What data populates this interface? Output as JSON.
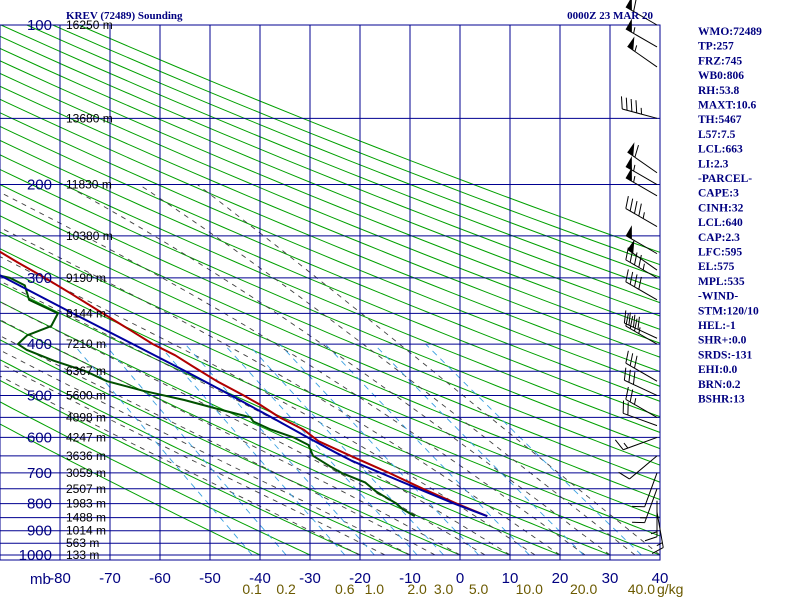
{
  "header": {
    "station": "KREV (72489) Sounding",
    "time": "0000Z 23 MAR 20"
  },
  "colors": {
    "grid": "#000090",
    "dry_adiabat": "#00a000",
    "moist_adiabat": "#404040",
    "mixing_ratio": "#3aa0e0",
    "temperature": "#b00000",
    "dewpoint": "#005000",
    "parcel": "#0000a0",
    "wind": "#000000"
  },
  "indices": [
    "WMO:72489",
    "TP:257",
    "FRZ:745",
    "WB0:806",
    "RH:53.8",
    "MAXT:10.6",
    "TH:5467",
    "L57:7.5",
    "LCL:663",
    "LI:2.3",
    "-PARCEL-",
    "CAPE:3",
    "CINH:32",
    "LCL:640",
    "CAP:2.3",
    "LFC:595",
    "EL:575",
    "MPL:535",
    "-WIND-",
    "STM:120/10",
    "HEL:-1",
    "SHR+:0.0",
    "SRDS:-131",
    "EHI:0.0",
    "BRN:0.2",
    "BSHR:13"
  ],
  "chart_data": {
    "type": "line",
    "xlabel": "",
    "ylabel": "",
    "x_unit_label": "mb",
    "mixing_ratio_unit": "g/kg",
    "xlim": [
      -80,
      10
    ],
    "ylim": [
      1000,
      100
    ],
    "temp_ticks": [
      -80,
      -70,
      -60,
      -50,
      -40,
      -30,
      -20,
      -10,
      0,
      10,
      20,
      30,
      40
    ],
    "temp_tick_labels": [
      "-80",
      "-70",
      "-60",
      "-50",
      "-40",
      "-30",
      "-20",
      "-10",
      "0",
      "10",
      "20",
      "30",
      "40"
    ],
    "pressure_ticks": [
      100,
      200,
      300,
      400,
      500,
      600,
      700,
      800,
      900,
      1000
    ],
    "height_labels": [
      {
        "p": 100,
        "label": "16250 m"
      },
      {
        "p": 150,
        "label": "13680 m"
      },
      {
        "p": 200,
        "label": "11830 m"
      },
      {
        "p": 250,
        "label": "10380 m"
      },
      {
        "p": 300,
        "label": "9190 m"
      },
      {
        "p": 350,
        "label": "8144 m"
      },
      {
        "p": 400,
        "label": "7210 m"
      },
      {
        "p": 450,
        "label": "6367 m"
      },
      {
        "p": 500,
        "label": "5600 m"
      },
      {
        "p": 550,
        "label": "4898 m"
      },
      {
        "p": 600,
        "label": "4247 m"
      },
      {
        "p": 650,
        "label": "3636 m"
      },
      {
        "p": 700,
        "label": "3059 m"
      },
      {
        "p": 750,
        "label": "2507 m"
      },
      {
        "p": 800,
        "label": "1983 m"
      },
      {
        "p": 850,
        "label": "1488 m"
      },
      {
        "p": 900,
        "label": "1014 m"
      },
      {
        "p": 950,
        "label": "563 m"
      },
      {
        "p": 1000,
        "label": "133 m"
      }
    ],
    "mixing_ratio_labels": [
      "0.1",
      "0.2",
      "0.6",
      "1.0",
      "2.0",
      "3.0",
      "5.0",
      "10.0",
      "20.0",
      "40.0"
    ],
    "series": [
      {
        "key": "temperature",
        "points": [
          [
            845,
            10.5
          ],
          [
            800,
            6
          ],
          [
            750,
            1.2
          ],
          [
            700,
            -3.5
          ],
          [
            650,
            -9
          ],
          [
            610,
            -13.5
          ],
          [
            580,
            -15
          ],
          [
            550,
            -18.2
          ],
          [
            520,
            -20.5
          ],
          [
            500,
            -22.5
          ],
          [
            470,
            -26
          ],
          [
            440,
            -29
          ],
          [
            420,
            -31
          ],
          [
            400,
            -34
          ],
          [
            370,
            -37.5
          ],
          [
            350,
            -40
          ],
          [
            320,
            -44
          ],
          [
            300,
            -47
          ],
          [
            280,
            -50.5
          ],
          [
            260,
            -54
          ],
          [
            250,
            -55.5
          ],
          [
            240,
            -54
          ],
          [
            220,
            -54
          ],
          [
            200,
            -55
          ],
          [
            180,
            -57.5
          ],
          [
            160,
            -60
          ],
          [
            150,
            -61.5
          ],
          [
            135,
            -63
          ],
          [
            120,
            -65
          ],
          [
            110,
            -68
          ],
          [
            100,
            -70
          ]
        ]
      },
      {
        "key": "dewpoint",
        "points": [
          [
            845,
            -4
          ],
          [
            820,
            -5.5
          ],
          [
            800,
            -6
          ],
          [
            760,
            -8.5
          ],
          [
            730,
            -9.5
          ],
          [
            700,
            -13
          ],
          [
            680,
            -14.5
          ],
          [
            650,
            -16.5
          ],
          [
            620,
            -16
          ],
          [
            600,
            -18
          ],
          [
            580,
            -21.5
          ],
          [
            560,
            -24
          ],
          [
            550,
            -24
          ],
          [
            530,
            -29.5
          ],
          [
            510,
            -35
          ],
          [
            490,
            -42
          ],
          [
            470,
            -48
          ],
          [
            450,
            -51
          ],
          [
            430,
            -56
          ],
          [
            410,
            -60
          ],
          [
            400,
            -61
          ],
          [
            385,
            -58
          ],
          [
            370,
            -52
          ],
          [
            350,
            -49
          ],
          [
            330,
            -53
          ],
          [
            310,
            -52
          ],
          [
            300,
            -54
          ],
          [
            290,
            -60
          ],
          [
            270,
            -68
          ],
          [
            250,
            -75
          ]
        ]
      },
      {
        "key": "parcel",
        "points": [
          [
            845,
            10.5
          ],
          [
            800,
            5.5
          ],
          [
            750,
            0.3
          ],
          [
            700,
            -5.2
          ],
          [
            663,
            -9.5
          ],
          [
            640,
            -11.6
          ],
          [
            600,
            -15.2
          ],
          [
            550,
            -19.8
          ],
          [
            500,
            -25
          ],
          [
            450,
            -31
          ],
          [
            400,
            -38
          ],
          [
            350,
            -46
          ],
          [
            300,
            -55
          ],
          [
            250,
            -65
          ],
          [
            200,
            -77
          ]
        ]
      }
    ],
    "wind_barbs": [
      {
        "p": 100,
        "dir": 300,
        "spd": 60
      },
      {
        "p": 110,
        "dir": 300,
        "spd": 55
      },
      {
        "p": 120,
        "dir": 305,
        "spd": 55
      },
      {
        "p": 150,
        "dir": 285,
        "spd": 45
      },
      {
        "p": 190,
        "dir": 305,
        "spd": 60
      },
      {
        "p": 200,
        "dir": 300,
        "spd": 55
      },
      {
        "p": 210,
        "dir": 300,
        "spd": 55
      },
      {
        "p": 240,
        "dir": 300,
        "spd": 45
      },
      {
        "p": 270,
        "dir": 300,
        "spd": 50
      },
      {
        "p": 290,
        "dir": 305,
        "spd": 50
      },
      {
        "p": 300,
        "dir": 300,
        "spd": 45
      },
      {
        "p": 330,
        "dir": 300,
        "spd": 40
      },
      {
        "p": 390,
        "dir": 295,
        "spd": 40
      },
      {
        "p": 400,
        "dir": 300,
        "spd": 35
      },
      {
        "p": 470,
        "dir": 300,
        "spd": 30
      },
      {
        "p": 500,
        "dir": 295,
        "spd": 30
      },
      {
        "p": 550,
        "dir": 300,
        "spd": 25
      },
      {
        "p": 570,
        "dir": 290,
        "spd": 20
      },
      {
        "p": 600,
        "dir": 250,
        "spd": 15
      },
      {
        "p": 650,
        "dir": 230,
        "spd": 10
      },
      {
        "p": 700,
        "dir": 200,
        "spd": 10
      },
      {
        "p": 750,
        "dir": 200,
        "spd": 15
      },
      {
        "p": 790,
        "dir": 180,
        "spd": 15
      },
      {
        "p": 830,
        "dir": 170,
        "spd": 15
      }
    ]
  }
}
